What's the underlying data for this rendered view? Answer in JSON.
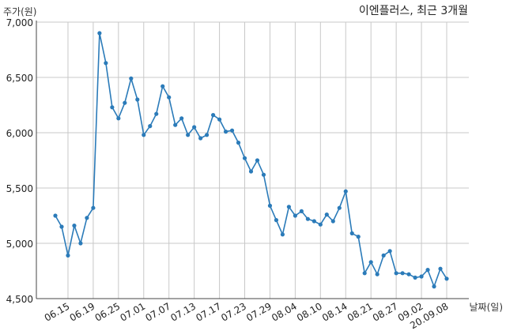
{
  "chart_data": {
    "type": "line",
    "title": "이엔플러스, 최근 3개월",
    "ylabel": "주가(원)",
    "xlabel": "날짜(일)",
    "ylim": [
      4500,
      7000
    ],
    "y_ticks": [
      4500,
      5000,
      5500,
      6000,
      6500,
      7000
    ],
    "y_tick_labels": [
      "4,500",
      "5,000",
      "5,500",
      "6,000",
      "6,500",
      "7,000"
    ],
    "x_tick_labels": [
      "06.15",
      "06.19",
      "06.25",
      "07.01",
      "07.07",
      "07.13",
      "07.17",
      "07.23",
      "07.29",
      "08.04",
      "08.10",
      "08.14",
      "08.21",
      "08.27",
      "09.02",
      "20.09.08"
    ],
    "x_tick_positions": [
      2,
      6,
      10,
      14,
      18,
      22,
      26,
      30,
      34,
      38,
      42,
      46,
      50,
      54,
      58,
      62
    ],
    "grid": true,
    "line_color": "#2b7bb9",
    "series": [
      {
        "values": [
          5250,
          5150,
          4890,
          5160,
          5000,
          5230,
          5320,
          6900,
          6630,
          6230,
          6130,
          6270,
          6490,
          6300,
          5980,
          6060,
          6170,
          6420,
          6320,
          6070,
          6130,
          5980,
          6050,
          5950,
          5980,
          6160,
          6120,
          6010,
          6020,
          5910,
          5770,
          5650,
          5750,
          5620,
          5340,
          5210,
          5080,
          5330,
          5250,
          5290,
          5220,
          5200,
          5170,
          5260,
          5200,
          5320,
          5470,
          5090,
          5060,
          4730,
          4830,
          4720,
          4890,
          4930,
          4730,
          4730,
          4720,
          4690,
          4700,
          4760,
          4610,
          4770,
          4680
        ]
      }
    ]
  }
}
